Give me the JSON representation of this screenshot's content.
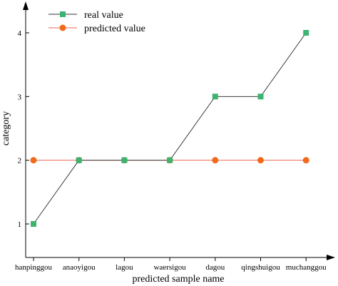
{
  "chart_data": {
    "type": "line",
    "title": "",
    "xlabel": "predicted sample name",
    "ylabel": "category",
    "categories": [
      "hanpinggou",
      "anaoyigou",
      "lagou",
      "waersigou",
      "dagou",
      "qingshuigou",
      "muchanggou"
    ],
    "y_ticks": [
      "1",
      "2",
      "3",
      "4"
    ],
    "ylim": [
      0.6,
      4.35
    ],
    "grid": false,
    "legend_position": "top-left",
    "series": [
      {
        "name": "real value",
        "values": [
          1,
          2,
          2,
          2,
          3,
          3,
          4
        ],
        "line_color": "#3a3a3a",
        "marker_color": "#3cb371",
        "marker": "square"
      },
      {
        "name": "predicted value",
        "values": [
          2,
          2,
          2,
          2,
          2,
          2,
          2
        ],
        "line_color": "#e8685a",
        "marker_color": "#f26b1d",
        "marker": "circle"
      }
    ]
  }
}
